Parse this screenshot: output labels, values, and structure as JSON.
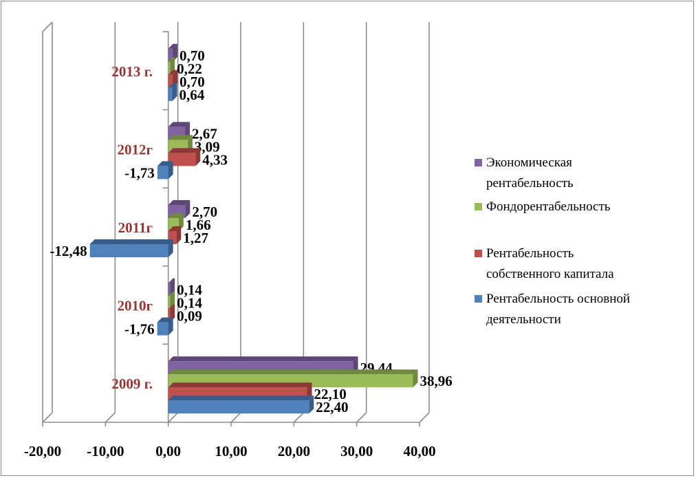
{
  "chart_data": {
    "type": "bar",
    "orientation": "horizontal",
    "style": "3d-clustered",
    "title": "",
    "xlabel": "",
    "ylabel": "",
    "xlim": [
      -20,
      40
    ],
    "x_ticks": [
      -20,
      -10,
      0,
      10,
      20,
      30,
      40
    ],
    "x_tick_labels": [
      "-20,00",
      "-10,00",
      "0,00",
      "10,00",
      "20,00",
      "30,00",
      "40,00"
    ],
    "grid": true,
    "legend_position": "right",
    "categories": [
      "2009 г.",
      "2010г",
      "2011г",
      "2012г",
      "2013 г."
    ],
    "series": [
      {
        "name": "Рентабельность основной деятельности",
        "color": "#4f81bd",
        "side": "#385d8a",
        "values": [
          22.4,
          -1.76,
          -12.48,
          -1.73,
          0.64
        ],
        "labels": [
          "22,40",
          "-1,76",
          "-12,48",
          "-1,73",
          "0,64"
        ]
      },
      {
        "name": "Рентабельность собственного капитала",
        "color": "#c0504d",
        "side": "#8c3836",
        "values": [
          22.1,
          0.09,
          1.27,
          4.33,
          0.7
        ],
        "labels": [
          "22,10",
          "0,09",
          "1,27",
          "4,33",
          "0,70"
        ]
      },
      {
        "name": "Фондорентабельность",
        "color": "#9bbb59",
        "side": "#71893f",
        "values": [
          38.96,
          0.14,
          1.66,
          3.09,
          0.22
        ],
        "labels": [
          "38,96",
          "0,14",
          "1,66",
          "3,09",
          "0,22"
        ]
      },
      {
        "name": "Экономическая рентабельность",
        "color": "#8064a2",
        "side": "#5c4776",
        "values": [
          29.44,
          0.14,
          2.7,
          2.67,
          0.7
        ],
        "labels": [
          "29,44",
          "0,14",
          "2,70",
          "2,67",
          "0,70"
        ]
      }
    ]
  },
  "legend": {
    "items": [
      {
        "label": "Экономическая\nрентабельность",
        "color": "#8064a2"
      },
      {
        "label": "Фондорентабельность",
        "color": "#9bbb59"
      },
      {
        "label": "Рентабельность\nсобственного капитала",
        "color": "#c0504d"
      },
      {
        "label": "Рентабельность основной\nдеятельности",
        "color": "#4f81bd"
      }
    ]
  }
}
